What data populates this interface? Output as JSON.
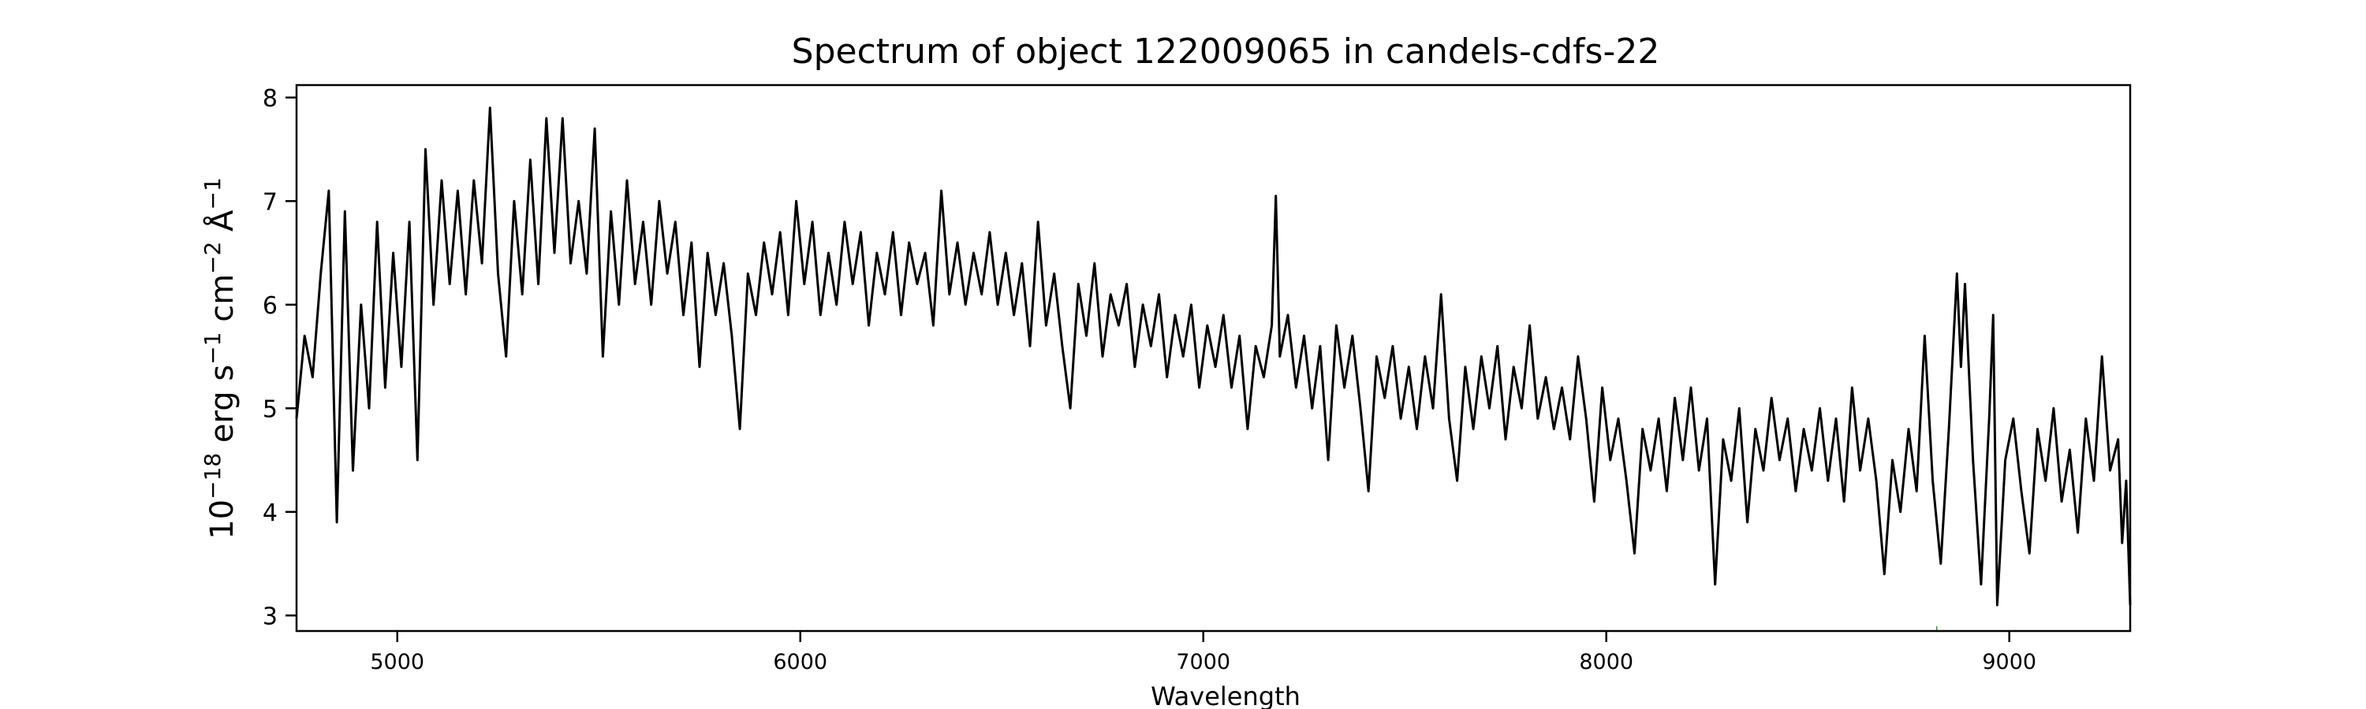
{
  "chart_data": {
    "type": "line",
    "title": "Spectrum of object 122009065 in candels-cdfs-22",
    "xlabel": "Wavelength",
    "ylabel": "10^-18 erg s^-1 cm^-2 Å^-1",
    "ylabel_parts": [
      "10",
      "−18",
      " erg s",
      "−1",
      " cm",
      "−2",
      " Å",
      "−1"
    ],
    "xlim": [
      4750,
      9300
    ],
    "ylim": [
      2.85,
      8.12
    ],
    "xticks": [
      5000,
      6000,
      7000,
      8000,
      9000
    ],
    "xtick_labels": [
      "5000",
      "6000",
      "7000",
      "8000",
      "9000"
    ],
    "yticks": [
      3,
      4,
      5,
      6,
      7,
      8
    ],
    "ytick_labels": [
      "3",
      "4",
      "5",
      "6",
      "7",
      "8"
    ],
    "grid": false,
    "line_color": "#000000",
    "marker_color": "#2ca02c",
    "marker_x": 8820,
    "series": [
      {
        "name": "spectrum",
        "points": [
          [
            4750,
            4.9
          ],
          [
            4770,
            5.7
          ],
          [
            4790,
            5.3
          ],
          [
            4810,
            6.3
          ],
          [
            4830,
            7.1
          ],
          [
            4850,
            3.9
          ],
          [
            4870,
            6.9
          ],
          [
            4890,
            4.4
          ],
          [
            4910,
            6.0
          ],
          [
            4930,
            5.0
          ],
          [
            4950,
            6.8
          ],
          [
            4970,
            5.2
          ],
          [
            4990,
            6.5
          ],
          [
            5010,
            5.4
          ],
          [
            5030,
            6.8
          ],
          [
            5050,
            4.5
          ],
          [
            5070,
            7.5
          ],
          [
            5090,
            6.0
          ],
          [
            5110,
            7.2
          ],
          [
            5130,
            6.2
          ],
          [
            5150,
            7.1
          ],
          [
            5170,
            6.1
          ],
          [
            5190,
            7.2
          ],
          [
            5210,
            6.4
          ],
          [
            5230,
            7.9
          ],
          [
            5250,
            6.3
          ],
          [
            5270,
            5.5
          ],
          [
            5290,
            7.0
          ],
          [
            5310,
            6.1
          ],
          [
            5330,
            7.4
          ],
          [
            5350,
            6.2
          ],
          [
            5370,
            7.8
          ],
          [
            5390,
            6.5
          ],
          [
            5410,
            7.8
          ],
          [
            5430,
            6.4
          ],
          [
            5450,
            7.0
          ],
          [
            5470,
            6.3
          ],
          [
            5490,
            7.7
          ],
          [
            5510,
            5.5
          ],
          [
            5530,
            6.9
          ],
          [
            5550,
            6.0
          ],
          [
            5570,
            7.2
          ],
          [
            5590,
            6.2
          ],
          [
            5610,
            6.8
          ],
          [
            5630,
            6.0
          ],
          [
            5650,
            7.0
          ],
          [
            5670,
            6.3
          ],
          [
            5690,
            6.8
          ],
          [
            5710,
            5.9
          ],
          [
            5730,
            6.6
          ],
          [
            5750,
            5.4
          ],
          [
            5770,
            6.5
          ],
          [
            5790,
            5.9
          ],
          [
            5810,
            6.4
          ],
          [
            5830,
            5.7
          ],
          [
            5850,
            4.8
          ],
          [
            5870,
            6.3
          ],
          [
            5890,
            5.9
          ],
          [
            5910,
            6.6
          ],
          [
            5930,
            6.1
          ],
          [
            5950,
            6.7
          ],
          [
            5970,
            5.9
          ],
          [
            5990,
            7.0
          ],
          [
            6010,
            6.2
          ],
          [
            6030,
            6.8
          ],
          [
            6050,
            5.9
          ],
          [
            6070,
            6.5
          ],
          [
            6090,
            6.0
          ],
          [
            6110,
            6.8
          ],
          [
            6130,
            6.2
          ],
          [
            6150,
            6.7
          ],
          [
            6170,
            5.8
          ],
          [
            6190,
            6.5
          ],
          [
            6210,
            6.1
          ],
          [
            6230,
            6.7
          ],
          [
            6250,
            5.9
          ],
          [
            6270,
            6.6
          ],
          [
            6290,
            6.2
          ],
          [
            6310,
            6.5
          ],
          [
            6330,
            5.8
          ],
          [
            6350,
            7.1
          ],
          [
            6370,
            6.1
          ],
          [
            6390,
            6.6
          ],
          [
            6410,
            6.0
          ],
          [
            6430,
            6.5
          ],
          [
            6450,
            6.1
          ],
          [
            6470,
            6.7
          ],
          [
            6490,
            6.0
          ],
          [
            6510,
            6.5
          ],
          [
            6530,
            5.9
          ],
          [
            6550,
            6.4
          ],
          [
            6570,
            5.6
          ],
          [
            6590,
            6.8
          ],
          [
            6610,
            5.8
          ],
          [
            6630,
            6.3
          ],
          [
            6650,
            5.6
          ],
          [
            6670,
            5.0
          ],
          [
            6690,
            6.2
          ],
          [
            6710,
            5.7
          ],
          [
            6730,
            6.4
          ],
          [
            6750,
            5.5
          ],
          [
            6770,
            6.1
          ],
          [
            6790,
            5.8
          ],
          [
            6810,
            6.2
          ],
          [
            6830,
            5.4
          ],
          [
            6850,
            6.0
          ],
          [
            6870,
            5.6
          ],
          [
            6890,
            6.1
          ],
          [
            6910,
            5.3
          ],
          [
            6930,
            5.9
          ],
          [
            6950,
            5.5
          ],
          [
            6970,
            6.0
          ],
          [
            6990,
            5.2
          ],
          [
            7010,
            5.8
          ],
          [
            7030,
            5.4
          ],
          [
            7050,
            5.9
          ],
          [
            7070,
            5.2
          ],
          [
            7090,
            5.7
          ],
          [
            7110,
            4.8
          ],
          [
            7130,
            5.6
          ],
          [
            7150,
            5.3
          ],
          [
            7170,
            5.8
          ],
          [
            7180,
            7.05
          ],
          [
            7190,
            5.5
          ],
          [
            7210,
            5.9
          ],
          [
            7230,
            5.2
          ],
          [
            7250,
            5.7
          ],
          [
            7270,
            5.0
          ],
          [
            7290,
            5.6
          ],
          [
            7310,
            4.5
          ],
          [
            7330,
            5.8
          ],
          [
            7350,
            5.2
          ],
          [
            7370,
            5.7
          ],
          [
            7390,
            5.0
          ],
          [
            7410,
            4.2
          ],
          [
            7430,
            5.5
          ],
          [
            7450,
            5.1
          ],
          [
            7470,
            5.6
          ],
          [
            7490,
            4.9
          ],
          [
            7510,
            5.4
          ],
          [
            7530,
            4.8
          ],
          [
            7550,
            5.5
          ],
          [
            7570,
            5.0
          ],
          [
            7590,
            6.1
          ],
          [
            7610,
            4.9
          ],
          [
            7630,
            4.3
          ],
          [
            7650,
            5.4
          ],
          [
            7670,
            4.8
          ],
          [
            7690,
            5.5
          ],
          [
            7710,
            5.0
          ],
          [
            7730,
            5.6
          ],
          [
            7750,
            4.7
          ],
          [
            7770,
            5.4
          ],
          [
            7790,
            5.0
          ],
          [
            7810,
            5.8
          ],
          [
            7830,
            4.9
          ],
          [
            7850,
            5.3
          ],
          [
            7870,
            4.8
          ],
          [
            7890,
            5.2
          ],
          [
            7910,
            4.7
          ],
          [
            7930,
            5.5
          ],
          [
            7950,
            4.9
          ],
          [
            7970,
            4.1
          ],
          [
            7990,
            5.2
          ],
          [
            8010,
            4.5
          ],
          [
            8030,
            4.9
          ],
          [
            8050,
            4.3
          ],
          [
            8070,
            3.6
          ],
          [
            8090,
            4.8
          ],
          [
            8110,
            4.4
          ],
          [
            8130,
            4.9
          ],
          [
            8150,
            4.2
          ],
          [
            8170,
            5.1
          ],
          [
            8190,
            4.5
          ],
          [
            8210,
            5.2
          ],
          [
            8230,
            4.4
          ],
          [
            8250,
            4.9
          ],
          [
            8270,
            3.3
          ],
          [
            8290,
            4.7
          ],
          [
            8310,
            4.3
          ],
          [
            8330,
            5.0
          ],
          [
            8350,
            3.9
          ],
          [
            8370,
            4.8
          ],
          [
            8390,
            4.4
          ],
          [
            8410,
            5.1
          ],
          [
            8430,
            4.5
          ],
          [
            8450,
            4.9
          ],
          [
            8470,
            4.2
          ],
          [
            8490,
            4.8
          ],
          [
            8510,
            4.4
          ],
          [
            8530,
            5.0
          ],
          [
            8550,
            4.3
          ],
          [
            8570,
            4.9
          ],
          [
            8590,
            4.1
          ],
          [
            8610,
            5.2
          ],
          [
            8630,
            4.4
          ],
          [
            8650,
            4.9
          ],
          [
            8670,
            4.3
          ],
          [
            8690,
            3.4
          ],
          [
            8710,
            4.5
          ],
          [
            8730,
            4.0
          ],
          [
            8750,
            4.8
          ],
          [
            8770,
            4.2
          ],
          [
            8790,
            5.7
          ],
          [
            8810,
            4.3
          ],
          [
            8830,
            3.5
          ],
          [
            8850,
            4.8
          ],
          [
            8870,
            6.3
          ],
          [
            8880,
            5.4
          ],
          [
            8890,
            6.2
          ],
          [
            8910,
            4.5
          ],
          [
            8930,
            3.3
          ],
          [
            8950,
            4.9
          ],
          [
            8960,
            5.9
          ],
          [
            8970,
            3.1
          ],
          [
            8990,
            4.5
          ],
          [
            9010,
            4.9
          ],
          [
            9030,
            4.2
          ],
          [
            9050,
            3.6
          ],
          [
            9070,
            4.8
          ],
          [
            9090,
            4.3
          ],
          [
            9110,
            5.0
          ],
          [
            9130,
            4.1
          ],
          [
            9150,
            4.6
          ],
          [
            9170,
            3.8
          ],
          [
            9190,
            4.9
          ],
          [
            9210,
            4.3
          ],
          [
            9230,
            5.5
          ],
          [
            9250,
            4.4
          ],
          [
            9270,
            4.7
          ],
          [
            9280,
            3.7
          ],
          [
            9290,
            4.3
          ],
          [
            9300,
            3.1
          ]
        ]
      }
    ]
  }
}
